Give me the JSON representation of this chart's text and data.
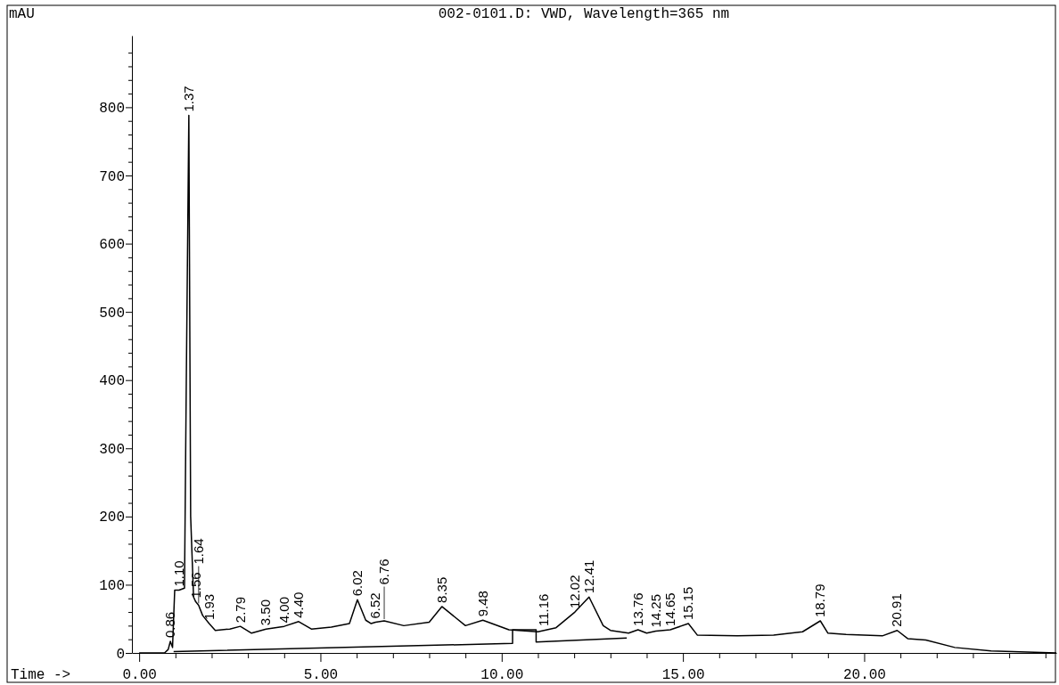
{
  "chart_data": {
    "type": "line",
    "title": "002-0101.D: VWD, Wavelength=365 nm",
    "ylabel": "mAU",
    "xlabel": "Time ->",
    "xlim": [
      -0.2,
      25.3
    ],
    "ylim": [
      0,
      905
    ],
    "xticks": [
      {
        "value": 0,
        "label": "0.00"
      },
      {
        "value": 1,
        "label": null
      },
      {
        "value": 2,
        "label": null
      },
      {
        "value": 3,
        "label": null
      },
      {
        "value": 4,
        "label": null
      },
      {
        "value": 5,
        "label": "5.00"
      },
      {
        "value": 6,
        "label": null
      },
      {
        "value": 7,
        "label": null
      },
      {
        "value": 8,
        "label": null
      },
      {
        "value": 9,
        "label": null
      },
      {
        "value": 10,
        "label": "10.00"
      },
      {
        "value": 11,
        "label": null
      },
      {
        "value": 12,
        "label": null
      },
      {
        "value": 13,
        "label": null
      },
      {
        "value": 14,
        "label": null
      },
      {
        "value": 15,
        "label": "15.00"
      },
      {
        "value": 16,
        "label": null
      },
      {
        "value": 17,
        "label": null
      },
      {
        "value": 18,
        "label": null
      },
      {
        "value": 19,
        "label": null
      },
      {
        "value": 20,
        "label": "20.00"
      },
      {
        "value": 21,
        "label": null
      },
      {
        "value": 22,
        "label": null
      },
      {
        "value": 23,
        "label": null
      },
      {
        "value": 24,
        "label": null
      },
      {
        "value": 25,
        "label": null
      }
    ],
    "yticks": [
      0,
      {
        "value": 20,
        "label": null
      },
      {
        "value": 40,
        "label": null
      },
      {
        "value": 60,
        "label": null
      },
      {
        "value": 80,
        "label": null
      },
      100,
      {
        "value": 120,
        "label": null
      },
      {
        "value": 140,
        "label": null
      },
      {
        "value": 160,
        "label": null
      },
      {
        "value": 180,
        "label": null
      },
      200,
      {
        "value": 220,
        "label": null
      },
      {
        "value": 240,
        "label": null
      },
      {
        "value": 260,
        "label": null
      },
      {
        "value": 280,
        "label": null
      },
      300,
      {
        "value": 320,
        "label": null
      },
      {
        "value": 340,
        "label": null
      },
      {
        "value": 360,
        "label": null
      },
      {
        "value": 380,
        "label": null
      },
      400,
      {
        "value": 420,
        "label": null
      },
      {
        "value": 440,
        "label": null
      },
      {
        "value": 460,
        "label": null
      },
      {
        "value": 480,
        "label": null
      },
      500,
      {
        "value": 520,
        "label": null
      },
      {
        "value": 540,
        "label": null
      },
      {
        "value": 560,
        "label": null
      },
      {
        "value": 580,
        "label": null
      },
      600,
      {
        "value": 620,
        "label": null
      },
      {
        "value": 640,
        "label": null
      },
      {
        "value": 660,
        "label": null
      },
      {
        "value": 680,
        "label": null
      },
      700,
      {
        "value": 720,
        "label": null
      },
      {
        "value": 740,
        "label": null
      },
      {
        "value": 760,
        "label": null
      },
      {
        "value": 780,
        "label": null
      },
      800,
      {
        "value": 820,
        "label": null
      },
      {
        "value": 840,
        "label": null
      },
      {
        "value": 860,
        "label": null
      },
      {
        "value": 880,
        "label": null
      }
    ],
    "grid": false,
    "marker": "none",
    "line_style": "solid",
    "series": [
      {
        "color": "#000000",
        "x": [
          0,
          0.7,
          0.8,
          0.86,
          0.92,
          0.98,
          1.1,
          1.25,
          1.3,
          1.37,
          1.42,
          1.5,
          1.56,
          1.64,
          1.75,
          1.93,
          2.1,
          2.5,
          2.79,
          3.1,
          3.5,
          4.0,
          4.4,
          4.75,
          5.3,
          5.8,
          6.02,
          6.25,
          6.4,
          6.52,
          6.76,
          7.3,
          8.0,
          8.35,
          9.0,
          9.48,
          10.2,
          11.0,
          11.5,
          12.02,
          12.41,
          12.8,
          13.0,
          13.5,
          13.76,
          14.0,
          14.25,
          14.65,
          15.15,
          15.4,
          16.5,
          17.5,
          18.3,
          18.79,
          19.0,
          19.5,
          20.5,
          20.91,
          21.2,
          21.7,
          22.5,
          23.5,
          25.3
        ],
        "values": [
          0,
          0,
          5,
          17,
          8,
          92,
          92,
          95,
          400,
          788,
          200,
          82,
          75,
          70,
          55,
          43,
          33,
          35,
          39,
          29,
          35,
          39,
          46,
          35,
          38,
          43,
          78,
          48,
          43,
          45,
          47,
          40,
          45,
          68,
          40,
          48,
          34,
          31,
          37,
          60,
          82,
          40,
          33,
          29,
          34,
          29,
          32,
          34,
          43,
          26,
          25,
          26,
          31,
          47,
          29,
          27,
          25,
          33,
          21,
          19,
          8,
          3,
          0
        ]
      },
      {
        "color": "#000000",
        "x": [
          0.95,
          10.3,
          10.3,
          10.95,
          10.95,
          13.45
        ],
        "values": [
          2,
          14,
          34,
          34,
          16,
          22
        ]
      }
    ],
    "annotations": [
      {
        "text": "0.86",
        "x": 0.86,
        "y": 17
      },
      {
        "text": "1.10",
        "x": 1.1,
        "y": 92
      },
      {
        "text": "1.37",
        "x": 1.37,
        "y": 788
      },
      {
        "text": "1.56",
        "x": 1.56,
        "y": 75
      },
      {
        "text": "1.64",
        "x": 1.64,
        "y": 70
      },
      {
        "text": "1.93",
        "x": 1.93,
        "y": 43
      },
      {
        "text": "2.79",
        "x": 2.79,
        "y": 39
      },
      {
        "text": "3.50",
        "x": 3.5,
        "y": 35
      },
      {
        "text": "4.00",
        "x": 4.0,
        "y": 39
      },
      {
        "text": "4.40",
        "x": 4.4,
        "y": 46
      },
      {
        "text": "6.02",
        "x": 6.02,
        "y": 78
      },
      {
        "text": "6.52",
        "x": 6.52,
        "y": 45
      },
      {
        "text": "6.76",
        "x": 6.76,
        "y": 47
      },
      {
        "text": "8.35",
        "x": 8.35,
        "y": 68
      },
      {
        "text": "9.48",
        "x": 9.48,
        "y": 48
      },
      {
        "text": "11.16",
        "x": 11.16,
        "y": 34
      },
      {
        "text": "12.02",
        "x": 12.02,
        "y": 60
      },
      {
        "text": "12.41",
        "x": 12.41,
        "y": 82
      },
      {
        "text": "13.76",
        "x": 13.76,
        "y": 34
      },
      {
        "text": "14.25",
        "x": 14.25,
        "y": 32
      },
      {
        "text": "14.65",
        "x": 14.65,
        "y": 34
      },
      {
        "text": "15.15",
        "x": 15.15,
        "y": 43
      },
      {
        "text": "18.79",
        "x": 18.79,
        "y": 47
      },
      {
        "text": "20.91",
        "x": 20.91,
        "y": 33
      }
    ]
  }
}
